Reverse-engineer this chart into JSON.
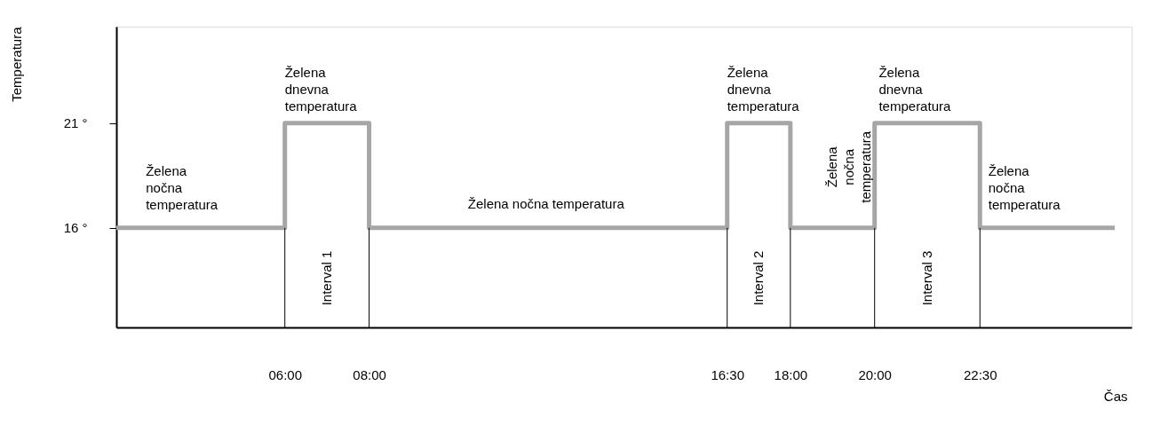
{
  "chart_data": {
    "type": "step",
    "xlabel": "Čas",
    "ylabel": "Temperatura",
    "x": [
      2,
      6,
      8,
      16.5,
      18,
      20,
      22.5,
      25.7
    ],
    "series": [
      {
        "color": "#a6a6a6",
        "values": [
          16,
          21,
          16,
          21,
          16,
          21,
          16,
          16
        ]
      }
    ],
    "xlim": [
      2,
      26.1
    ],
    "ylim": [
      11.25,
      25.6
    ],
    "xticks": [
      {
        "value": 6,
        "label": "06:00"
      },
      {
        "value": 8,
        "label": "08:00"
      },
      {
        "value": 16.5,
        "label": "16:30"
      },
      {
        "value": 18,
        "label": "18:00"
      },
      {
        "value": 20,
        "label": "20:00"
      },
      {
        "value": 22.5,
        "label": "22:30"
      }
    ],
    "yticks": [
      {
        "value": 16,
        "label": "16 °"
      },
      {
        "value": 21,
        "label": "21 °"
      }
    ],
    "ref_lines": [
      {
        "axis": "x",
        "value": 6,
        "color": "#000000"
      },
      {
        "axis": "x",
        "value": 8,
        "color": "#000000"
      },
      {
        "axis": "x",
        "value": 16.5,
        "color": "#000000"
      },
      {
        "axis": "x",
        "value": 18,
        "color": "#000000"
      },
      {
        "axis": "x",
        "value": 20,
        "color": "#000000"
      },
      {
        "axis": "x",
        "value": 22.5,
        "color": "#000000"
      }
    ],
    "annotations": [
      "Želena\nnočna\ntemperatura",
      "Želena\ndnevna\ntemperatura",
      "Interval 1",
      "Želena nočna temperatura",
      "Želena\ndnevna\ntemperatura",
      "Interval 2",
      "Želena\nnočna\ntemperatura",
      "Želena\ndnevna\ntemperatura",
      "Interval 3",
      "Želena\nnočna\ntemperatura"
    ],
    "grid": false,
    "line_style": "solid",
    "marker": "none"
  }
}
